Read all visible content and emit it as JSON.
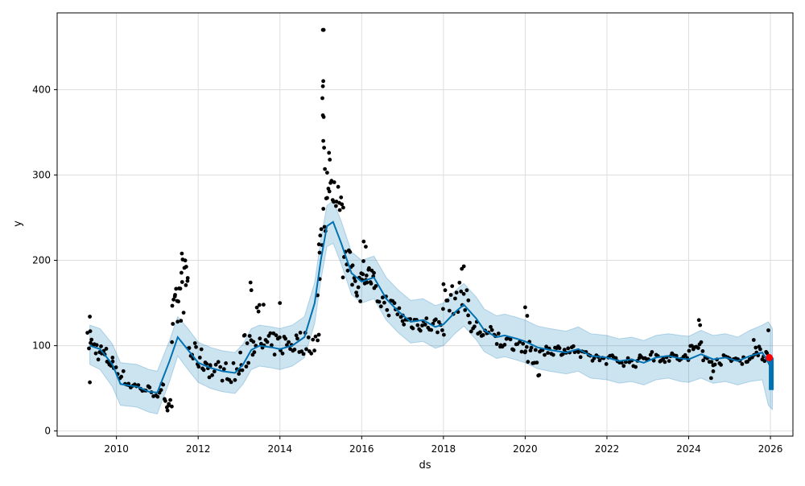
{
  "chart_data": {
    "type": "scatter",
    "title": "",
    "xlabel": "ds",
    "ylabel": "y",
    "xlim": [
      2008.55,
      2026.55
    ],
    "ylim": [
      -6,
      490
    ],
    "grid": true,
    "x_ticks": [
      {
        "value": 2010,
        "label": "2010"
      },
      {
        "value": 2012,
        "label": "2012"
      },
      {
        "value": 2014,
        "label": "2014"
      },
      {
        "value": 2016,
        "label": "2016"
      },
      {
        "value": 2018,
        "label": "2018"
      },
      {
        "value": 2020,
        "label": "2020"
      },
      {
        "value": 2022,
        "label": "2022"
      },
      {
        "value": 2024,
        "label": "2024"
      },
      {
        "value": 2026,
        "label": "2026"
      }
    ],
    "y_ticks": [
      {
        "value": 0,
        "label": "0"
      },
      {
        "value": 100,
        "label": "100"
      },
      {
        "value": 200,
        "label": "200"
      },
      {
        "value": 300,
        "label": "300"
      },
      {
        "value": 400,
        "label": "400"
      }
    ],
    "colors": {
      "observed": "#000000",
      "forecast": "#0072b2",
      "interval": "#0072b2",
      "highlight": "#ff0000",
      "grid": "#dddddd"
    },
    "forecast": {
      "x": [
        2009.35,
        2009.6,
        2009.9,
        2010.1,
        2010.5,
        2010.8,
        2011.0,
        2011.3,
        2011.5,
        2011.75,
        2012.0,
        2012.3,
        2012.6,
        2012.9,
        2013.1,
        2013.3,
        2013.5,
        2013.8,
        2014.0,
        2014.3,
        2014.6,
        2014.85,
        2015.0,
        2015.15,
        2015.3,
        2015.5,
        2015.75,
        2016.0,
        2016.3,
        2016.6,
        2016.9,
        2017.2,
        2017.5,
        2017.8,
        2018.0,
        2018.3,
        2018.5,
        2018.8,
        2019.0,
        2019.3,
        2019.5,
        2019.8,
        2020.0,
        2020.3,
        2020.6,
        2021.0,
        2021.3,
        2021.6,
        2022.0,
        2022.3,
        2022.6,
        2022.9,
        2023.2,
        2023.5,
        2023.8,
        2024.0,
        2024.3,
        2024.6,
        2024.9,
        2025.2,
        2025.5,
        2025.8,
        2025.95,
        2026.05
      ],
      "yhat": [
        100,
        96,
        78,
        55,
        52,
        46,
        45,
        82,
        110,
        95,
        80,
        74,
        70,
        68,
        78,
        95,
        100,
        98,
        96,
        100,
        110,
        150,
        200,
        240,
        245,
        220,
        185,
        175,
        180,
        155,
        140,
        128,
        130,
        122,
        125,
        140,
        148,
        132,
        118,
        110,
        112,
        108,
        105,
        98,
        95,
        92,
        96,
        88,
        86,
        82,
        84,
        80,
        86,
        88,
        85,
        84,
        90,
        84,
        86,
        82,
        88,
        92,
        80,
        70
      ],
      "lower": [
        78,
        72,
        52,
        30,
        28,
        22,
        20,
        58,
        88,
        72,
        57,
        50,
        46,
        44,
        55,
        72,
        76,
        74,
        72,
        76,
        86,
        126,
        176,
        216,
        220,
        196,
        160,
        150,
        155,
        130,
        115,
        103,
        105,
        97,
        100,
        115,
        123,
        107,
        93,
        85,
        87,
        83,
        80,
        73,
        70,
        67,
        70,
        62,
        60,
        56,
        58,
        54,
        60,
        62,
        58,
        57,
        62,
        56,
        58,
        54,
        58,
        60,
        30,
        25
      ],
      "upper": [
        124,
        120,
        102,
        80,
        78,
        72,
        70,
        106,
        134,
        120,
        104,
        98,
        94,
        92,
        102,
        120,
        124,
        122,
        120,
        124,
        134,
        174,
        224,
        264,
        270,
        246,
        210,
        200,
        205,
        180,
        165,
        153,
        155,
        147,
        150,
        165,
        173,
        157,
        143,
        135,
        137,
        133,
        130,
        123,
        120,
        117,
        122,
        114,
        112,
        108,
        110,
        106,
        112,
        114,
        112,
        111,
        118,
        112,
        114,
        110,
        118,
        124,
        128,
        120
      ]
    },
    "observed_segments": [
      [
        2009.3,
        2009.9,
        105,
        80,
        12,
        20
      ],
      [
        2009.9,
        2010.3,
        80,
        55,
        8,
        10
      ],
      [
        2010.3,
        2011.1,
        55,
        43,
        6,
        18
      ],
      [
        2011.1,
        2011.35,
        46,
        35,
        12,
        8
      ],
      [
        2011.35,
        2011.75,
        120,
        185,
        30,
        22
      ],
      [
        2011.75,
        2012.3,
        95,
        75,
        14,
        18
      ],
      [
        2012.3,
        2013.0,
        72,
        68,
        12,
        16
      ],
      [
        2013.0,
        2013.5,
        75,
        130,
        25,
        18
      ],
      [
        2013.5,
        2014.95,
        100,
        105,
        14,
        40
      ],
      [
        2014.95,
        2015.15,
        200,
        290,
        40,
        10
      ],
      [
        2015.15,
        2015.55,
        285,
        270,
        15,
        16
      ],
      [
        2015.55,
        2016.0,
        200,
        170,
        22,
        18
      ],
      [
        2016.0,
        2016.3,
        190,
        175,
        14,
        14
      ],
      [
        2016.3,
        2017.0,
        160,
        135,
        12,
        18
      ],
      [
        2017.0,
        2018.0,
        130,
        122,
        10,
        28
      ],
      [
        2018.0,
        2018.6,
        150,
        160,
        18,
        18
      ],
      [
        2018.6,
        2019.4,
        125,
        105,
        12,
        20
      ],
      [
        2019.4,
        2020.0,
        105,
        100,
        8,
        14
      ],
      [
        2020.0,
        2020.35,
        95,
        75,
        15,
        12
      ],
      [
        2020.35,
        2021.3,
        95,
        95,
        6,
        24
      ],
      [
        2021.3,
        2022.8,
        88,
        80,
        6,
        32
      ],
      [
        2022.8,
        2024.0,
        88,
        85,
        6,
        28
      ],
      [
        2024.0,
        2024.35,
        90,
        105,
        12,
        10
      ],
      [
        2024.35,
        2025.6,
        82,
        85,
        6,
        26
      ],
      [
        2025.6,
        2025.95,
        100,
        88,
        10,
        12
      ]
    ],
    "observed_extra": [
      [
        2009.35,
        57
      ],
      [
        2009.35,
        134
      ],
      [
        2009.36,
        117
      ],
      [
        2011.25,
        24
      ],
      [
        2011.28,
        30
      ],
      [
        2011.6,
        208
      ],
      [
        2011.62,
        201
      ],
      [
        2013.28,
        174
      ],
      [
        2013.3,
        165
      ],
      [
        2013.6,
        148
      ],
      [
        2014.0,
        150
      ],
      [
        2014.92,
        159
      ],
      [
        2014.97,
        209
      ],
      [
        2015.05,
        470
      ],
      [
        2015.07,
        470
      ],
      [
        2015.06,
        410
      ],
      [
        2015.05,
        404
      ],
      [
        2015.04,
        390
      ],
      [
        2015.05,
        370
      ],
      [
        2015.07,
        368
      ],
      [
        2015.06,
        340
      ],
      [
        2015.08,
        332
      ],
      [
        2015.2,
        326
      ],
      [
        2015.22,
        318
      ],
      [
        2015.1,
        307
      ],
      [
        2016.05,
        222
      ],
      [
        2016.1,
        216
      ],
      [
        2018.5,
        193
      ],
      [
        2018.45,
        190
      ],
      [
        2018.0,
        172
      ],
      [
        2020.0,
        145
      ],
      [
        2020.05,
        135
      ],
      [
        2024.25,
        130
      ],
      [
        2024.28,
        124
      ],
      [
        2024.55,
        62
      ],
      [
        2024.6,
        70
      ],
      [
        2025.95,
        118
      ]
    ],
    "highlight_point": {
      "x": 2025.97,
      "y": 86
    },
    "forecast_tail": {
      "x": 2026.0,
      "y_top": 86,
      "y_bottom": 48
    }
  }
}
